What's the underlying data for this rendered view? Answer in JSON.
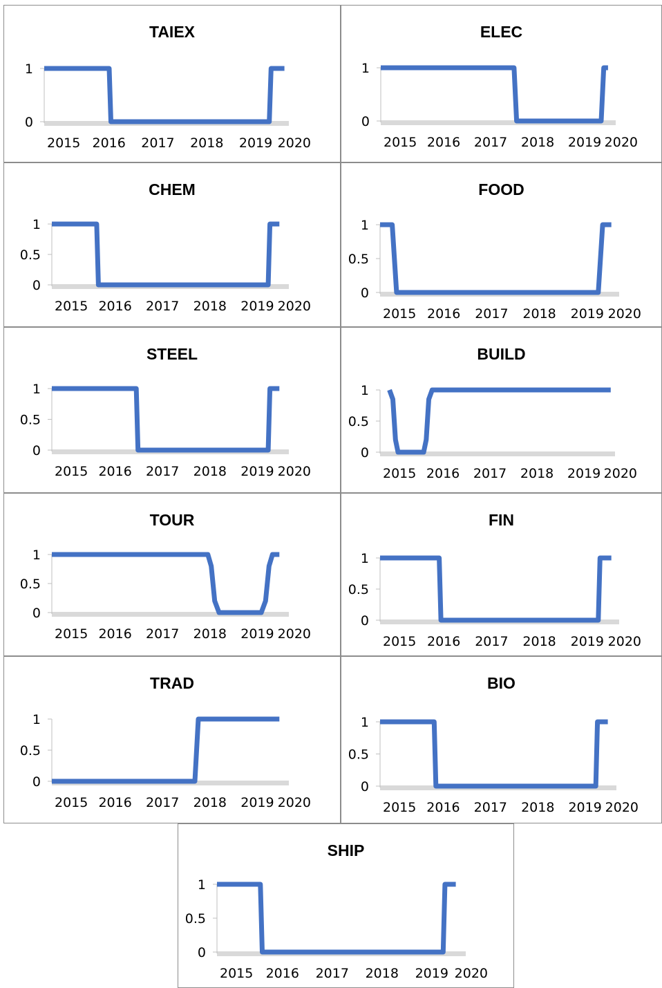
{
  "colors": {
    "series": "#4472C4",
    "baseline": "#D9D9D9",
    "axis": "#BFBFBF",
    "border": "#8C8C8C"
  },
  "chart_data": [
    {
      "type": "line",
      "title": "TAIEX",
      "yticks": [
        "0",
        "1"
      ],
      "ylim": [
        0,
        1
      ],
      "xticks": [
        "2015",
        "2016",
        "2017",
        "2018",
        "2019",
        "2020"
      ],
      "xlim": [
        2014.6,
        2020.1
      ],
      "grid": false,
      "legend": "none",
      "series": [
        {
          "points": [
            [
              2014.6,
              1
            ],
            [
              2016.06,
              1
            ],
            [
              2016.1,
              0
            ],
            [
              2019.66,
              0
            ],
            [
              2019.7,
              1
            ],
            [
              2020.0,
              1
            ]
          ]
        }
      ]
    },
    {
      "type": "line",
      "title": "ELEC",
      "yticks": [
        "0",
        "1"
      ],
      "ylim": [
        0,
        1
      ],
      "xticks": [
        "2015",
        "2016",
        "2017",
        "2018",
        "2019",
        "2020"
      ],
      "xlim": [
        2014.6,
        2020.1
      ],
      "grid": false,
      "legend": "none",
      "series": [
        {
          "points": [
            [
              2014.6,
              1
            ],
            [
              2017.72,
              1
            ],
            [
              2017.78,
              0
            ],
            [
              2019.76,
              0
            ],
            [
              2019.82,
              1
            ],
            [
              2019.92,
              1
            ]
          ]
        }
      ]
    },
    {
      "type": "line",
      "title": "CHEM",
      "yticks": [
        "0",
        "0.5",
        "1"
      ],
      "ylim": [
        0,
        1
      ],
      "xticks": [
        "2015",
        "2016",
        "2017",
        "2018",
        "2019",
        "2020"
      ],
      "xlim": [
        2014.6,
        2020.1
      ],
      "grid": false,
      "legend": "none",
      "series": [
        {
          "points": [
            [
              2014.6,
              1
            ],
            [
              2015.64,
              1
            ],
            [
              2015.68,
              0
            ],
            [
              2019.62,
              0
            ],
            [
              2019.66,
              1
            ],
            [
              2019.88,
              1
            ]
          ]
        }
      ]
    },
    {
      "type": "line",
      "title": "FOOD",
      "yticks": [
        "0",
        "0.5",
        "1"
      ],
      "ylim": [
        0,
        1
      ],
      "xticks": [
        "2015",
        "2016",
        "2017",
        "2018",
        "2019",
        "2020"
      ],
      "xlim": [
        2014.6,
        2020.1
      ],
      "grid": false,
      "legend": "none",
      "series": [
        {
          "points": [
            [
              2014.6,
              1
            ],
            [
              2014.88,
              1
            ],
            [
              2014.98,
              0
            ],
            [
              2019.62,
              0
            ],
            [
              2019.72,
              1
            ],
            [
              2019.92,
              1
            ]
          ]
        }
      ]
    },
    {
      "type": "line",
      "title": "STEEL",
      "yticks": [
        "0",
        "0.5",
        "1"
      ],
      "ylim": [
        0,
        1
      ],
      "xticks": [
        "2015",
        "2016",
        "2017",
        "2018",
        "2019",
        "2020"
      ],
      "xlim": [
        2014.6,
        2020.1
      ],
      "grid": false,
      "legend": "none",
      "series": [
        {
          "points": [
            [
              2014.6,
              1
            ],
            [
              2016.56,
              1
            ],
            [
              2016.6,
              0
            ],
            [
              2019.62,
              0
            ],
            [
              2019.66,
              1
            ],
            [
              2019.88,
              1
            ]
          ]
        }
      ]
    },
    {
      "type": "line",
      "title": "BUILD",
      "yticks": [
        "0",
        "0.5",
        "1"
      ],
      "ylim": [
        0,
        1
      ],
      "xticks": [
        "2015",
        "2016",
        "2017",
        "2018",
        "2019",
        "2020"
      ],
      "xlim": [
        2014.6,
        2020.1
      ],
      "grid": false,
      "legend": "none",
      "series": [
        {
          "points": [
            [
              2014.82,
              1
            ],
            [
              2014.9,
              0.85
            ],
            [
              2014.96,
              0.2
            ],
            [
              2015.02,
              0
            ],
            [
              2015.62,
              0
            ],
            [
              2015.68,
              0.2
            ],
            [
              2015.74,
              0.85
            ],
            [
              2015.82,
              1
            ],
            [
              2020.0,
              1
            ]
          ]
        }
      ]
    },
    {
      "type": "line",
      "title": "TOUR",
      "yticks": [
        "0",
        "0.5",
        "1"
      ],
      "ylim": [
        0,
        1
      ],
      "xticks": [
        "2015",
        "2016",
        "2017",
        "2018",
        "2019",
        "2020"
      ],
      "xlim": [
        2014.6,
        2020.1
      ],
      "grid": false,
      "legend": "none",
      "series": [
        {
          "points": [
            [
              2014.6,
              1
            ],
            [
              2018.22,
              1
            ],
            [
              2018.3,
              0.8
            ],
            [
              2018.38,
              0.2
            ],
            [
              2018.48,
              0
            ],
            [
              2019.46,
              0
            ],
            [
              2019.56,
              0.2
            ],
            [
              2019.64,
              0.8
            ],
            [
              2019.72,
              1
            ],
            [
              2019.88,
              1
            ]
          ]
        }
      ]
    },
    {
      "type": "line",
      "title": "FIN",
      "yticks": [
        "0",
        "0.5",
        "1"
      ],
      "ylim": [
        0,
        1
      ],
      "xticks": [
        "2015",
        "2016",
        "2017",
        "2018",
        "2019",
        "2020"
      ],
      "xlim": [
        2014.6,
        2020.1
      ],
      "grid": false,
      "legend": "none",
      "series": [
        {
          "points": [
            [
              2014.6,
              1
            ],
            [
              2015.96,
              1
            ],
            [
              2016.0,
              0
            ],
            [
              2019.62,
              0
            ],
            [
              2019.66,
              1
            ],
            [
              2019.92,
              1
            ]
          ]
        }
      ]
    },
    {
      "type": "line",
      "title": "TRAD",
      "yticks": [
        "0",
        "0.5",
        "1"
      ],
      "ylim": [
        0,
        1
      ],
      "xticks": [
        "2015",
        "2016",
        "2017",
        "2018",
        "2019",
        "2020"
      ],
      "xlim": [
        2014.6,
        2020.1
      ],
      "grid": false,
      "legend": "none",
      "series": [
        {
          "points": [
            [
              2014.6,
              0
            ],
            [
              2017.92,
              0
            ],
            [
              2017.96,
              0.5
            ],
            [
              2018.0,
              1
            ],
            [
              2019.88,
              1
            ]
          ]
        }
      ]
    },
    {
      "type": "line",
      "title": "BIO",
      "yticks": [
        "0",
        "0.5",
        "1"
      ],
      "ylim": [
        0,
        1
      ],
      "xticks": [
        "2015",
        "2016",
        "2017",
        "2018",
        "2019",
        "2020"
      ],
      "xlim": [
        2014.6,
        2020.1
      ],
      "grid": false,
      "legend": "none",
      "series": [
        {
          "points": [
            [
              2014.6,
              1
            ],
            [
              2015.86,
              1
            ],
            [
              2015.9,
              0
            ],
            [
              2019.62,
              0
            ],
            [
              2019.66,
              1
            ],
            [
              2019.9,
              1
            ]
          ]
        }
      ]
    },
    {
      "type": "line",
      "title": "SHIP",
      "yticks": [
        "0",
        "0.5",
        "1"
      ],
      "ylim": [
        0,
        1
      ],
      "xticks": [
        "2015",
        "2016",
        "2017",
        "2018",
        "2019",
        "2020"
      ],
      "xlim": [
        2014.6,
        2020.1
      ],
      "grid": false,
      "legend": "none",
      "series": [
        {
          "points": [
            [
              2014.6,
              1
            ],
            [
              2015.56,
              1
            ],
            [
              2015.6,
              0
            ],
            [
              2019.6,
              0
            ],
            [
              2019.64,
              1
            ],
            [
              2019.88,
              1
            ]
          ]
        }
      ]
    }
  ]
}
